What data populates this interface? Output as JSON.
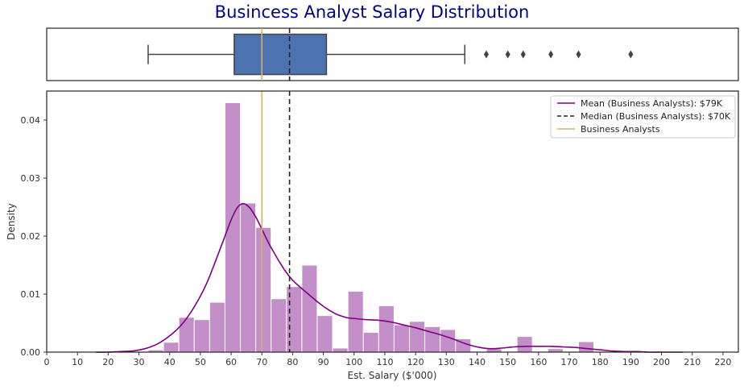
{
  "chart_data": [
    {
      "type": "box",
      "title": "Busincess Analyst Salary Distribution",
      "box": {
        "whisker_low": 33,
        "q1": 61,
        "median": 70,
        "q3": 91,
        "whisker_high": 136
      },
      "outliers": [
        143,
        150,
        155,
        164,
        173,
        190
      ],
      "mean_line": 79,
      "median_line": 70,
      "box_color": "#4c72b0",
      "xlim": [
        0,
        225
      ]
    },
    {
      "type": "histogram",
      "xlabel": "Est. Salary ($'000)",
      "ylabel": "Density",
      "xlim": [
        0,
        225
      ],
      "ylim": [
        0,
        0.045
      ],
      "xticks": [
        "0",
        "10",
        "20",
        "30",
        "40",
        "50",
        "60",
        "70",
        "80",
        "90",
        "100",
        "110",
        "120",
        "130",
        "140",
        "150",
        "160",
        "170",
        "180",
        "190",
        "200",
        "210",
        "220"
      ],
      "xtick_values": [
        0,
        10,
        20,
        30,
        40,
        50,
        60,
        70,
        80,
        90,
        100,
        110,
        120,
        130,
        140,
        150,
        160,
        170,
        180,
        190,
        200,
        210,
        220
      ],
      "yticks": [
        "0.00",
        "0.01",
        "0.02",
        "0.03",
        "0.04"
      ],
      "ytick_values": [
        0,
        0.01,
        0.02,
        0.03,
        0.04
      ],
      "bins": [
        {
          "x0": 33.0,
          "x1": 38.0,
          "density": 0.0004
        },
        {
          "x0": 38.0,
          "x1": 43.0,
          "density": 0.0017
        },
        {
          "x0": 43.0,
          "x1": 48.0,
          "density": 0.006
        },
        {
          "x0": 48.0,
          "x1": 53.0,
          "density": 0.0056
        },
        {
          "x0": 53.0,
          "x1": 58.0,
          "density": 0.0086
        },
        {
          "x0": 58.0,
          "x1": 63.0,
          "density": 0.043
        },
        {
          "x0": 63.0,
          "x1": 68.0,
          "density": 0.0257
        },
        {
          "x0": 68.0,
          "x1": 73.0,
          "density": 0.0215
        },
        {
          "x0": 73.0,
          "x1": 78.0,
          "density": 0.0092
        },
        {
          "x0": 78.0,
          "x1": 83.0,
          "density": 0.0113
        },
        {
          "x0": 83.0,
          "x1": 88.0,
          "density": 0.015
        },
        {
          "x0": 88.0,
          "x1": 93.0,
          "density": 0.0063
        },
        {
          "x0": 93.0,
          "x1": 98.0,
          "density": 0.0007
        },
        {
          "x0": 98.0,
          "x1": 103.0,
          "density": 0.0105
        },
        {
          "x0": 103.0,
          "x1": 108.0,
          "density": 0.0034
        },
        {
          "x0": 108.0,
          "x1": 113.0,
          "density": 0.008
        },
        {
          "x0": 113.0,
          "x1": 118.0,
          "density": 0.0047
        },
        {
          "x0": 118.0,
          "x1": 123.0,
          "density": 0.0053
        },
        {
          "x0": 123.0,
          "x1": 128.0,
          "density": 0.0044
        },
        {
          "x0": 128.0,
          "x1": 133.0,
          "density": 0.0039
        },
        {
          "x0": 133.0,
          "x1": 138.0,
          "density": 0.0023
        },
        {
          "x0": 143.0,
          "x1": 148.0,
          "density": 0.0006
        },
        {
          "x0": 153.0,
          "x1": 158.0,
          "density": 0.0027
        },
        {
          "x0": 163.0,
          "x1": 168.0,
          "density": 0.0006
        },
        {
          "x0": 173.0,
          "x1": 178.0,
          "density": 0.0018
        }
      ],
      "kde": {
        "name": "Mean (Business Analysts): $79K",
        "x": [
          16,
          20,
          24,
          28,
          32,
          36,
          40,
          44,
          48,
          52,
          56,
          58,
          60,
          62,
          64,
          66,
          68,
          70,
          72,
          74,
          76,
          78,
          80,
          82,
          84,
          86,
          88,
          90,
          92,
          94,
          96,
          98,
          100,
          104,
          108,
          112,
          116,
          120,
          124,
          128,
          132,
          136,
          140,
          144,
          148,
          152,
          156,
          160,
          164,
          168,
          172,
          176,
          180,
          184,
          188,
          192,
          196,
          200,
          204,
          207
        ],
        "y": [
          0.0,
          0.0,
          0.0001,
          0.0002,
          0.0006,
          0.0014,
          0.0028,
          0.0048,
          0.0078,
          0.0118,
          0.0172,
          0.02,
          0.0228,
          0.0249,
          0.0256,
          0.0249,
          0.0233,
          0.0212,
          0.019,
          0.0171,
          0.0153,
          0.0137,
          0.0124,
          0.0114,
          0.0105,
          0.0096,
          0.0087,
          0.0079,
          0.0072,
          0.0066,
          0.0062,
          0.0059,
          0.0058,
          0.0056,
          0.0055,
          0.0052,
          0.0047,
          0.0042,
          0.0036,
          0.003,
          0.0023,
          0.0015,
          0.0009,
          0.0006,
          0.0007,
          0.0009,
          0.001,
          0.001,
          0.001,
          0.0009,
          0.0008,
          0.0006,
          0.0004,
          0.0002,
          0.0001,
          0.0001,
          0.0,
          0.0,
          0.0,
          0.0
        ],
        "color": "#800080"
      },
      "vlines": [
        {
          "x": 79,
          "color": "#222222",
          "dash": true
        },
        {
          "x": 70,
          "color": "#d4b46a",
          "dash": false
        }
      ],
      "bar_color": "#c38fc8",
      "legend": {
        "placement": "top-right",
        "entries": [
          {
            "label": "Mean (Business Analysts): $79K",
            "color": "#800080",
            "style": "solid"
          },
          {
            "label": "Median (Business Analysts): $70K",
            "color": "#222222",
            "style": "dashed"
          },
          {
            "label": "Business Analysts",
            "color": "#d4b46a",
            "style": "solid"
          }
        ]
      }
    }
  ]
}
